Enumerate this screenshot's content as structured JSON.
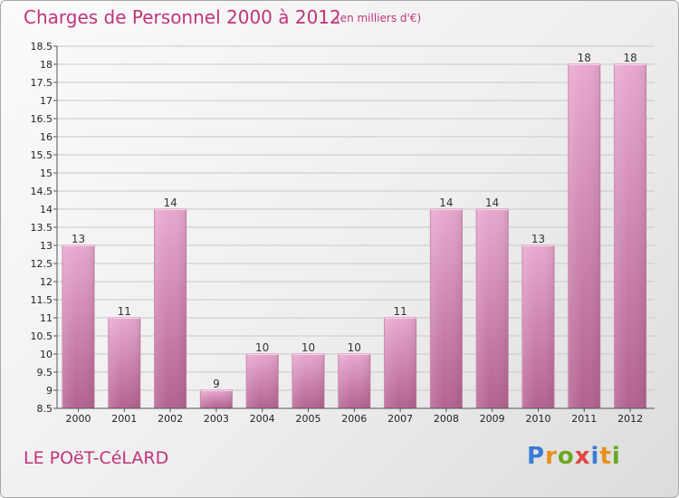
{
  "header": {
    "title": "Charges de Personnel 2000 à 2012",
    "subtitle": "(en milliers d'€)"
  },
  "footer": {
    "town": "LE POëT-CéLARD",
    "brand": "Proxiti",
    "brand_letters": [
      {
        "char": "P",
        "color": "#3a7bd5"
      },
      {
        "char": "r",
        "color": "#e8901c"
      },
      {
        "char": "o",
        "color": "#6aa823"
      },
      {
        "char": "x",
        "color": "#e04545"
      },
      {
        "char": "i",
        "color": "#3a7bd5"
      },
      {
        "char": "t",
        "color": "#e8901c"
      },
      {
        "char": "i",
        "color": "#6aa823"
      }
    ]
  },
  "colors": {
    "bar_light": "#e8a8cf",
    "bar_dark": "#b3628f",
    "bar_edge": "#c87aa6",
    "grid": "#c8c8c8",
    "axis": "#555555"
  },
  "chart_data": {
    "type": "bar",
    "title": "Charges de Personnel 2000 à 2012",
    "subtitle": "(en milliers d'€)",
    "categories": [
      "2000",
      "2001",
      "2002",
      "2003",
      "2004",
      "2005",
      "2006",
      "2007",
      "2008",
      "2009",
      "2010",
      "2011",
      "2012"
    ],
    "values": [
      13,
      11,
      14,
      9,
      10,
      10,
      10,
      11,
      14,
      14,
      13,
      18,
      18
    ],
    "data_labels": [
      "13",
      "11",
      "14",
      "9",
      "10",
      "10",
      "10",
      "11",
      "14",
      "14",
      "13",
      "18",
      "18"
    ],
    "ylim": [
      8.5,
      18.5
    ],
    "yticks": [
      8.5,
      9,
      9.5,
      10,
      10.5,
      11,
      11.5,
      12,
      12.5,
      13,
      13.5,
      14,
      14.5,
      15,
      15.5,
      16,
      16.5,
      17,
      17.5,
      18,
      18.5
    ],
    "ytick_labels": [
      "8.5",
      "9",
      "9.5",
      "10",
      "10.5",
      "11",
      "11.5",
      "12",
      "12.5",
      "13",
      "13.5",
      "14",
      "14.5",
      "15",
      "15.5",
      "16",
      "16.5",
      "17",
      "17.5",
      "18",
      "18.5"
    ],
    "xlabel": "",
    "ylabel": "",
    "grid": true,
    "legend": "none"
  }
}
